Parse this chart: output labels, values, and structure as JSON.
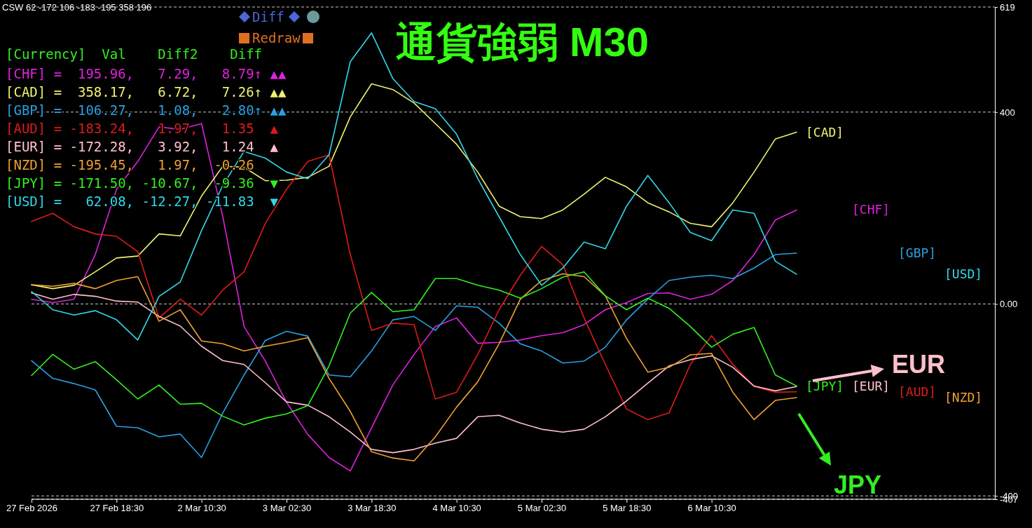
{
  "chart_data": {
    "type": "line",
    "title": "通貨強弱 M30",
    "annotations": [
      "CSW 62 -172 106 -183 -195 358 196",
      "[Currency]  Val    Diff2    Diff",
      "[CHF] =  195.96,   7.29,   8.79↑ ▲▲",
      "[CAD] =  358.17,   6.72,   7.26↑ ▲▲",
      "[GBP] =  106.27,   1.08,   2.80↑ ▲▲",
      "[AUD] = -183.24,   1.97,   1.35  ▲",
      "[EUR] = -172.28,   3.92,   1.24  ▲",
      "[NZD] = -195.45,   1.97,  -0.26",
      "[JPY] = -171.50, -10.67,  -9.36  ▼",
      "[USD] =   62.08, -12.27, -11.83  ▼",
      "Diff",
      "Redraw",
      "EUR",
      "JPY"
    ],
    "categories": [
      "27 Feb 2026",
      null,
      null,
      null,
      "27 Feb 18:30",
      null,
      null,
      null,
      "2 Mar 10:30",
      null,
      null,
      null,
      "3 Mar 02:30",
      null,
      null,
      null,
      "3 Mar 18:30",
      null,
      null,
      null,
      "4 Mar 10:30",
      null,
      null,
      null,
      "5 Mar 02:30",
      null,
      null,
      null,
      "5 Mar 18:30",
      null,
      null,
      null,
      "6 Mar 10:30",
      null,
      null,
      null,
      null
    ],
    "ylim": [
      -407,
      619
    ],
    "yticks": [
      619,
      400,
      {
        "value": 0,
        "label": "0.00"
      },
      -400,
      -407
    ],
    "grid": "y",
    "series": [
      {
        "name": "[CHF]",
        "color": "#dd22dd",
        "values": [
          10,
          3,
          10,
          103,
          239,
          297,
          369,
          364,
          376,
          182,
          -47,
          -119,
          -205,
          -272,
          -320,
          -348,
          -258,
          -169,
          -105,
          -47,
          -29,
          -82,
          -80,
          -75,
          -66,
          -60,
          -43,
          -12,
          3,
          22,
          23,
          10,
          20,
          49,
          103,
          175,
          196
        ]
      },
      {
        "name": "[CAD]",
        "color": "#f0f070",
        "values": [
          40,
          32,
          39,
          67,
          96,
          100,
          146,
          142,
          225,
          287,
          285,
          257,
          258,
          264,
          287,
          390,
          459,
          447,
          419,
          376,
          333,
          275,
          204,
          182,
          178,
          196,
          229,
          264,
          244,
          211,
          192,
          168,
          161,
          211,
          275,
          344,
          358
        ]
      },
      {
        "name": "[GBP]",
        "color": "#2aa0e0",
        "values": [
          -118,
          -155,
          -166,
          -179,
          -255,
          -258,
          -277,
          -271,
          -320,
          -227,
          -148,
          -76,
          -57,
          -67,
          -148,
          -152,
          -98,
          -33,
          -26,
          -55,
          -4,
          -7,
          -40,
          -83,
          -98,
          -123,
          -119,
          -90,
          -33,
          10,
          49,
          56,
          60,
          53,
          75,
          103,
          106
        ]
      },
      {
        "name": "[AUD]",
        "color": "#dd1a1a",
        "values": [
          172,
          189,
          161,
          146,
          141,
          109,
          -29,
          10,
          -23,
          29,
          67,
          168,
          239,
          297,
          311,
          103,
          -55,
          -40,
          -43,
          -198,
          -184,
          -105,
          -12,
          60,
          120,
          82,
          -29,
          -126,
          -219,
          -241,
          -227,
          -126,
          -66,
          -126,
          -172,
          -184,
          -183
        ]
      },
      {
        "name": "[EUR]",
        "color": "#ffc0cb",
        "values": [
          23,
          10,
          20,
          16,
          6,
          4,
          -26,
          -46,
          -88,
          -118,
          -126,
          -164,
          -204,
          -211,
          -235,
          -267,
          -303,
          -310,
          -303,
          -290,
          -280,
          -235,
          -232,
          -248,
          -261,
          -267,
          -261,
          -235,
          -202,
          -165,
          -129,
          -116,
          -108,
          -132,
          -171,
          -181,
          -172
        ]
      },
      {
        "name": "[NZD]",
        "color": "#f0a030",
        "values": [
          40,
          37,
          43,
          32,
          49,
          57,
          -36,
          -12,
          -77,
          -83,
          -98,
          -88,
          -80,
          -70,
          -155,
          -224,
          -308,
          -321,
          -327,
          -277,
          -215,
          -162,
          -83,
          10,
          49,
          63,
          57,
          17,
          -72,
          -142,
          -132,
          -106,
          -103,
          -184,
          -241,
          -201,
          -195
        ]
      },
      {
        "name": "[JPY]",
        "color": "#33ee22",
        "values": [
          -149,
          -105,
          -136,
          -120,
          -158,
          -198,
          -169,
          -209,
          -207,
          -234,
          -252,
          -238,
          -229,
          -212,
          -129,
          -19,
          24,
          -16,
          -12,
          53,
          53,
          39,
          29,
          12,
          32,
          56,
          67,
          17,
          -12,
          12,
          -9,
          -47,
          -90,
          -63,
          -49,
          -148,
          -171
        ]
      },
      {
        "name": "[USD]",
        "color": "#30d8e8",
        "values": [
          26,
          -12,
          -23,
          -14,
          -33,
          -75,
          16,
          46,
          153,
          247,
          318,
          304,
          275,
          261,
          311,
          505,
          565,
          470,
          422,
          407,
          354,
          261,
          182,
          103,
          39,
          75,
          129,
          115,
          204,
          268,
          211,
          149,
          132,
          196,
          189,
          89,
          62
        ]
      }
    ]
  }
}
